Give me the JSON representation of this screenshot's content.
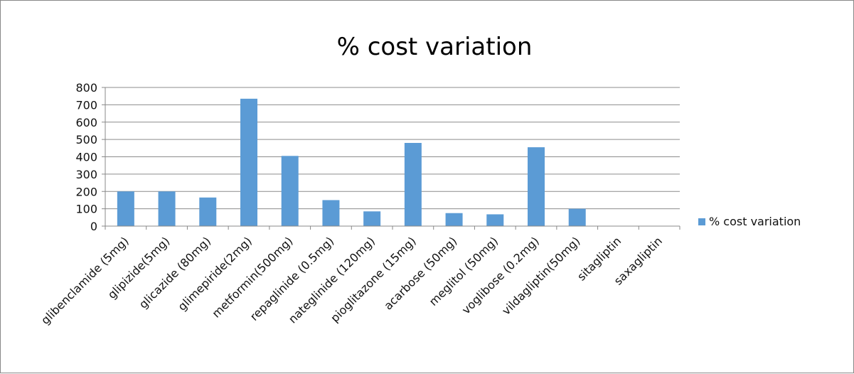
{
  "chart_data": {
    "type": "bar",
    "title": "% cost variation",
    "xlabel": "",
    "ylabel": "",
    "ylim": [
      0,
      800
    ],
    "yticks": [
      "0",
      "100",
      "200",
      "300",
      "400",
      "500",
      "600",
      "700",
      "800"
    ],
    "grid": true,
    "legend_position": "right",
    "categories": [
      "glibenclamide (5mg)",
      "glipizide(5mg)",
      "glicazide (80mg)",
      "glimepiride(2mg)",
      "metformin(500mg)",
      "repaglinide (0.5mg)",
      "nateglinide (120mg)",
      "pioglitazone (15mg)",
      "acarbose (50mg)",
      "meglitol (50mg)",
      "voglibose (0.2mg)",
      "vildagliptin(50mg)",
      "sitagliptin",
      "saxagliptin"
    ],
    "series": [
      {
        "name": "% cost variation",
        "color": "#5B9BD5",
        "values": [
          200,
          200,
          165,
          735,
          405,
          150,
          85,
          480,
          75,
          68,
          455,
          100,
          0,
          0
        ]
      }
    ]
  }
}
